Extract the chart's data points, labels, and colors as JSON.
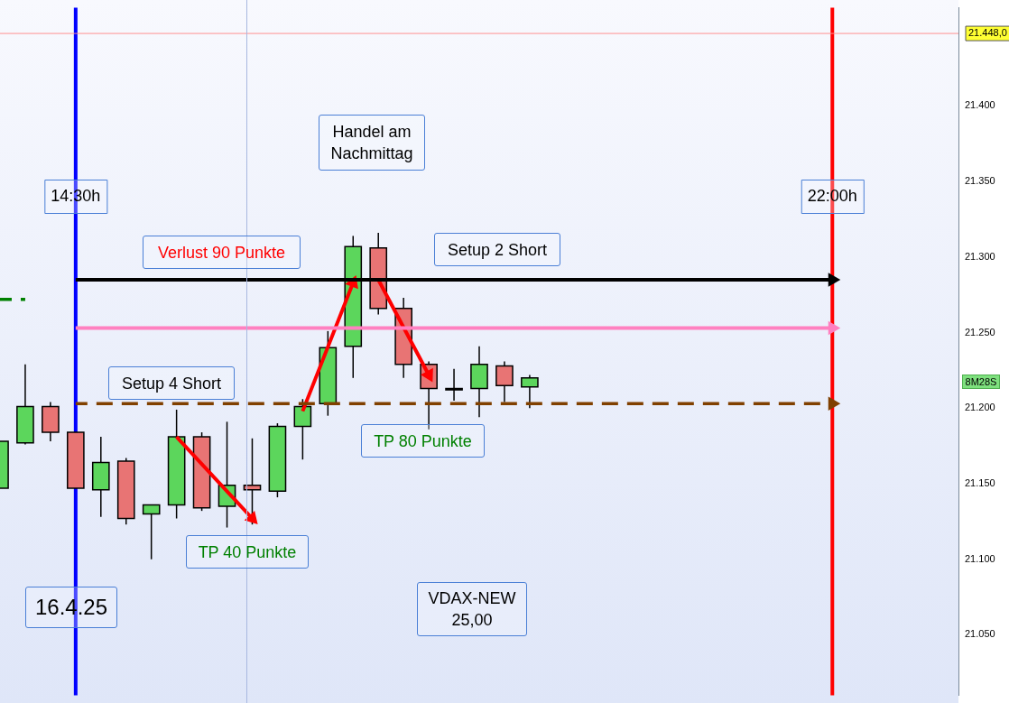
{
  "chart_data": {
    "type": "candlestick",
    "categories": [
      null,
      null,
      null,
      "14:30h",
      null,
      null,
      null,
      null,
      null,
      null,
      null,
      null,
      null,
      null,
      null,
      null,
      null,
      null,
      null,
      null,
      null,
      null,
      null,
      null,
      null,
      null,
      null,
      null,
      null,
      null,
      null,
      null,
      null,
      "22:00h",
      null,
      null,
      null,
      null,
      null
    ],
    "ohlc": [
      [
        21147,
        21178,
        21147,
        21178
      ],
      [
        21177,
        21229,
        21176,
        21201
      ],
      [
        21201,
        21204,
        21178,
        21184
      ],
      [
        21184,
        21184,
        21147,
        21147
      ],
      [
        21146,
        21181,
        21128,
        21164
      ],
      [
        21165,
        21167,
        21123,
        21127
      ],
      [
        21130,
        21136,
        21100,
        21136
      ],
      [
        21136,
        21199,
        21127,
        21181
      ],
      [
        21181,
        21184,
        21132,
        21134
      ],
      [
        21135,
        21191,
        21121,
        21149
      ],
      [
        21149,
        21180,
        21123,
        21146
      ],
      [
        21145,
        21190,
        21141,
        21188
      ],
      [
        21188,
        21206,
        21166,
        21201
      ],
      [
        21203,
        21251,
        21195,
        21240
      ],
      [
        21241,
        21314,
        21220,
        21307
      ],
      [
        21306,
        21316,
        21262,
        21266
      ],
      [
        21266,
        21273,
        21220,
        21229
      ],
      [
        21229,
        21231,
        21186,
        21213
      ],
      [
        21213,
        21226,
        21205,
        21213
      ],
      [
        21213,
        21241,
        21194,
        21229
      ],
      [
        21228,
        21231,
        21204,
        21215
      ],
      [
        21214,
        21222,
        21200,
        21220
      ],
      null,
      null,
      null,
      null,
      null,
      null,
      null,
      null,
      null,
      null,
      null,
      null,
      null,
      null,
      null,
      null,
      null
    ],
    "colors": [
      "#5cd65c",
      "#5cd65c",
      "#e87474",
      "#e87474",
      "#5cd65c",
      "#e87474",
      "#5cd65c",
      "#5cd65c",
      "#e87474",
      "#5cd65c",
      "#e87474",
      "#5cd65c",
      "#5cd65c",
      "#5cd65c",
      "#5cd65c",
      "#e87474",
      "#e87474",
      "#e87474",
      "#000000",
      "#5cd65c",
      "#e87474",
      "#5cd65c",
      null,
      null,
      null,
      null,
      null,
      null,
      null,
      null,
      null,
      null,
      null,
      null,
      null,
      null,
      null,
      null,
      null
    ],
    "ylim": [
      21010,
      21465
    ],
    "yticks": [
      {
        "value": 21050,
        "label": "21.050"
      },
      {
        "value": 21100,
        "label": "21.100"
      },
      {
        "value": 21150,
        "label": "21.150"
      },
      {
        "value": 21200,
        "label": "21.200"
      },
      {
        "value": 21250,
        "label": "21.250"
      },
      {
        "value": 21300,
        "label": "21.300"
      },
      {
        "value": 21350,
        "label": "21.350"
      },
      {
        "value": 21400,
        "label": "21.400"
      }
    ],
    "ref_lines": [
      {
        "axis": "x",
        "value": "14:30h",
        "color": "#0000ff"
      },
      {
        "axis": "x",
        "value": "22:00h",
        "color": "#ff0000"
      },
      {
        "axis": "y",
        "value": 21448,
        "label": "21.448,0",
        "color": "#ff9090"
      }
    ],
    "series": [
      {
        "type": "line",
        "color": "#000000",
        "line_style": "solid",
        "values": [
          null,
          null,
          null,
          21285,
          21285,
          21285,
          21285,
          21285,
          21285,
          21285,
          21285,
          21285,
          21285,
          21285,
          21285,
          21285,
          21285,
          21285,
          21285,
          21285,
          21285,
          21285,
          21285,
          21285,
          21285,
          21285,
          21285,
          21285,
          21285,
          21285,
          21285,
          21285,
          21285,
          21285,
          null,
          null,
          null,
          null,
          null
        ]
      },
      {
        "type": "line",
        "color": "#ff80c0",
        "line_style": "solid",
        "values": [
          null,
          null,
          null,
          21253,
          21253,
          21253,
          21253,
          21253,
          21253,
          21253,
          21253,
          21253,
          21253,
          21253,
          21253,
          21253,
          21253,
          21253,
          21253,
          21253,
          21253,
          21253,
          21253,
          21253,
          21253,
          21253,
          21253,
          21253,
          21253,
          21253,
          21253,
          21253,
          21253,
          21253,
          null,
          null,
          null,
          null,
          null
        ]
      },
      {
        "type": "line",
        "color": "#804000",
        "line_style": "dashed",
        "values": [
          null,
          null,
          null,
          21203,
          21203,
          21203,
          21203,
          21203,
          21203,
          21203,
          21203,
          21203,
          21203,
          21203,
          21203,
          21203,
          21203,
          21203,
          21203,
          21203,
          21203,
          21203,
          21203,
          21203,
          21203,
          21203,
          21203,
          21203,
          21203,
          21203,
          21203,
          21203,
          21203,
          21203,
          null,
          null,
          null,
          null,
          null
        ]
      },
      {
        "type": "line",
        "color": "#008000",
        "line_style": "dashed",
        "values": [
          21272,
          21272,
          null,
          null,
          null,
          null,
          null,
          null,
          null,
          null,
          null,
          null,
          null,
          null,
          null,
          null,
          null,
          null,
          null,
          null,
          null,
          null,
          null,
          null,
          null,
          null,
          null,
          null,
          null,
          null,
          null,
          null,
          null,
          null,
          null,
          null,
          null,
          null,
          null
        ]
      },
      {
        "type": "line",
        "color": "#ff0000",
        "line_style": "solid",
        "values": [
          null,
          null,
          null,
          null,
          null,
          null,
          null,
          21181,
          null,
          null,
          21127,
          null,
          null,
          null,
          null,
          null,
          null,
          null,
          null,
          null,
          null,
          null,
          null,
          null,
          null,
          null,
          null,
          null,
          null,
          null,
          null,
          null,
          null,
          null,
          null,
          null,
          null,
          null,
          null
        ]
      },
      {
        "type": "line",
        "color": "#ff0000",
        "line_style": "solid",
        "values": [
          null,
          null,
          null,
          null,
          null,
          null,
          null,
          null,
          null,
          null,
          null,
          null,
          21198,
          null,
          21283,
          null,
          null,
          null,
          null,
          null,
          null,
          null,
          null,
          null,
          null,
          null,
          null,
          null,
          null,
          null,
          null,
          null,
          null,
          null,
          null,
          null,
          null,
          null,
          null
        ]
      },
      {
        "type": "line",
        "color": "#ff0000",
        "line_style": "solid",
        "values": [
          null,
          null,
          null,
          null,
          null,
          null,
          null,
          null,
          null,
          null,
          null,
          null,
          null,
          null,
          null,
          21285,
          null,
          21222,
          null,
          null,
          null,
          null,
          null,
          null,
          null,
          null,
          null,
          null,
          null,
          null,
          null,
          null,
          null,
          null,
          null,
          null,
          null,
          null,
          null
        ]
      }
    ],
    "annotations": [
      "Handel am\nNachmittag",
      "Verlust 90 Punkte",
      "Setup 2 Short",
      "Setup 4 Short",
      "TP 80 Punkte",
      "TP 40 Punkte",
      "16.4.25",
      "VDAX-NEW\n25,00",
      "8M28S"
    ]
  }
}
